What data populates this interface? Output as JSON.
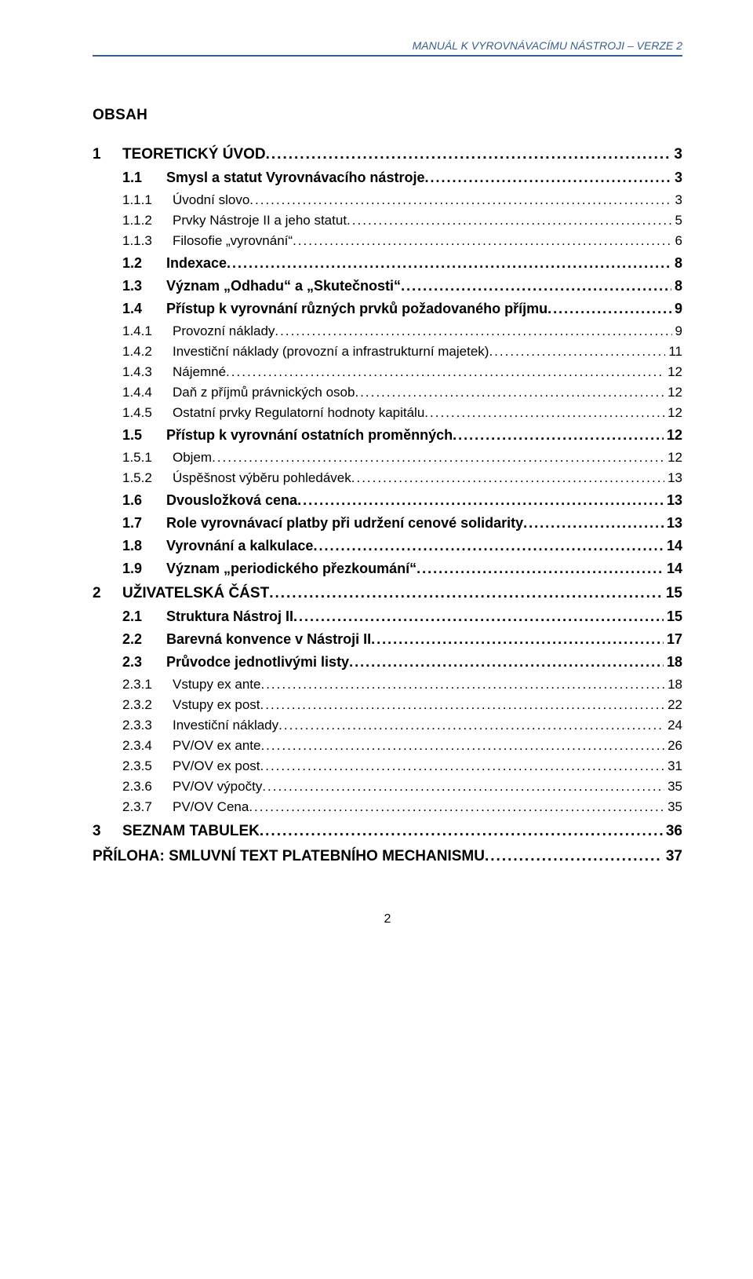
{
  "header": {
    "text": "MANUÁL K VYROVNÁVACÍMU NÁSTROJI – VERZE 2",
    "color": "#365f91"
  },
  "obsah_label": "OBSAH",
  "page_number": "2",
  "toc": [
    {
      "level": 1,
      "num": "1",
      "title": "TEORETICKÝ ÚVOD",
      "page": "3"
    },
    {
      "level": 2,
      "num": "1.1",
      "title": "Smysl a statut Vyrovnávacího nástroje",
      "page": "3"
    },
    {
      "level": 3,
      "num": "1.1.1",
      "title": "Úvodní slovo",
      "page": "3"
    },
    {
      "level": 3,
      "num": "1.1.2",
      "title": "Prvky Nástroje II a jeho statut",
      "page": "5"
    },
    {
      "level": 3,
      "num": "1.1.3",
      "title": "Filosofie „vyrovnání“",
      "page": "6"
    },
    {
      "level": 2,
      "num": "1.2",
      "title": "Indexace",
      "page": "8"
    },
    {
      "level": 2,
      "num": "1.3",
      "title": "Význam „Odhadu“ a „Skutečnosti“",
      "page": "8"
    },
    {
      "level": 2,
      "num": "1.4",
      "title": "Přístup k vyrovnání různých prvků požadovaného příjmu",
      "page": "9"
    },
    {
      "level": 3,
      "num": "1.4.1",
      "title": "Provozní náklady",
      "page": "9"
    },
    {
      "level": 3,
      "num": "1.4.2",
      "title": "Investiční náklady (provozní a infrastrukturní majetek)",
      "page": "11"
    },
    {
      "level": 3,
      "num": "1.4.3",
      "title": "Nájemné",
      "page": "12"
    },
    {
      "level": 3,
      "num": "1.4.4",
      "title": "Daň z příjmů právnických osob",
      "page": "12"
    },
    {
      "level": 3,
      "num": "1.4.5",
      "title": "Ostatní prvky Regulatorní hodnoty kapitálu",
      "page": "12"
    },
    {
      "level": 2,
      "num": "1.5",
      "title": "Přístup k vyrovnání ostatních proměnných",
      "page": "12"
    },
    {
      "level": 3,
      "num": "1.5.1",
      "title": "Objem",
      "page": "12"
    },
    {
      "level": 3,
      "num": "1.5.2",
      "title": "Úspěšnost výběru pohledávek",
      "page": "13"
    },
    {
      "level": 2,
      "num": "1.6",
      "title": "Dvousložková cena",
      "page": "13"
    },
    {
      "level": 2,
      "num": "1.7",
      "title": "Role vyrovnávací platby při udržení cenové solidarity",
      "page": "13"
    },
    {
      "level": 2,
      "num": "1.8",
      "title": "Vyrovnání a kalkulace",
      "page": "14"
    },
    {
      "level": 2,
      "num": "1.9",
      "title": "Význam „periodického přezkoumání“",
      "page": "14"
    },
    {
      "level": 1,
      "num": "2",
      "title": "UŽIVATELSKÁ ČÁST",
      "page": "15"
    },
    {
      "level": 2,
      "num": "2.1",
      "title": "Struktura Nástroj II",
      "page": "15"
    },
    {
      "level": 2,
      "num": "2.2",
      "title": "Barevná konvence v Nástroji II",
      "page": "17"
    },
    {
      "level": 2,
      "num": "2.3",
      "title": "Průvodce jednotlivými listy",
      "page": "18"
    },
    {
      "level": 3,
      "num": "2.3.1",
      "title": "Vstupy ex ante",
      "page": "18"
    },
    {
      "level": 3,
      "num": "2.3.2",
      "title": "Vstupy ex post",
      "page": "22"
    },
    {
      "level": 3,
      "num": "2.3.3",
      "title": "Investiční náklady",
      "page": "24"
    },
    {
      "level": 3,
      "num": "2.3.4",
      "title": "PV/OV ex ante",
      "page": "26"
    },
    {
      "level": 3,
      "num": "2.3.5",
      "title": "PV/OV ex post",
      "page": "31"
    },
    {
      "level": 3,
      "num": "2.3.6",
      "title": "PV/OV výpočty",
      "page": "35"
    },
    {
      "level": 3,
      "num": "2.3.7",
      "title": "PV/OV Cena",
      "page": "35"
    },
    {
      "level": 1,
      "num": "3",
      "title": "SEZNAM TABULEK",
      "page": "36"
    },
    {
      "level": 0,
      "num": "",
      "title": "PŘÍLOHA: SMLUVNÍ TEXT PLATEBNÍHO MECHANISMU",
      "page": "37"
    }
  ]
}
